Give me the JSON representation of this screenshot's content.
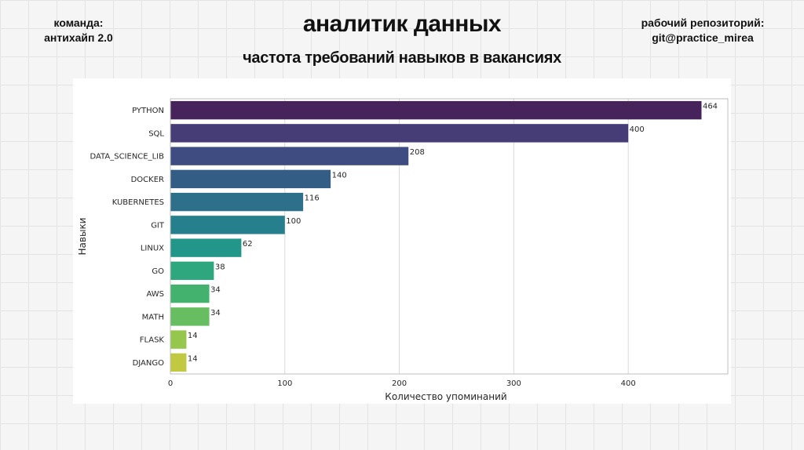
{
  "header": {
    "team_label": "команда:",
    "team_name": "антихайп 2.0",
    "title": "аналитик данных",
    "subtitle": "частота требований навыков в вакансиях",
    "repo_label": "рабочий репозиторий:",
    "repo_name": "git@practice_mirea"
  },
  "chart_data": {
    "type": "bar",
    "orientation": "horizontal",
    "categories": [
      "PYTHON",
      "SQL",
      "DATA_SCIENCE_LIB",
      "DOCKER",
      "KUBERNETES",
      "GIT",
      "LINUX",
      "GO",
      "AWS",
      "MATH",
      "FLASK",
      "DJANGO"
    ],
    "values": [
      464,
      400,
      208,
      140,
      116,
      100,
      62,
      38,
      34,
      34,
      14,
      14
    ],
    "colors": [
      "#46245b",
      "#463c76",
      "#3e4c82",
      "#345d86",
      "#2e6f8a",
      "#257f8d",
      "#23968a",
      "#2ea77f",
      "#44b26f",
      "#67be60",
      "#95c74d",
      "#c0c93f"
    ],
    "xlabel": "Количество упоминаний",
    "ylabel": "Навыки",
    "xlim": [
      0,
      487
    ],
    "xticks": [
      0,
      100,
      200,
      300,
      400
    ],
    "grid": true
  }
}
